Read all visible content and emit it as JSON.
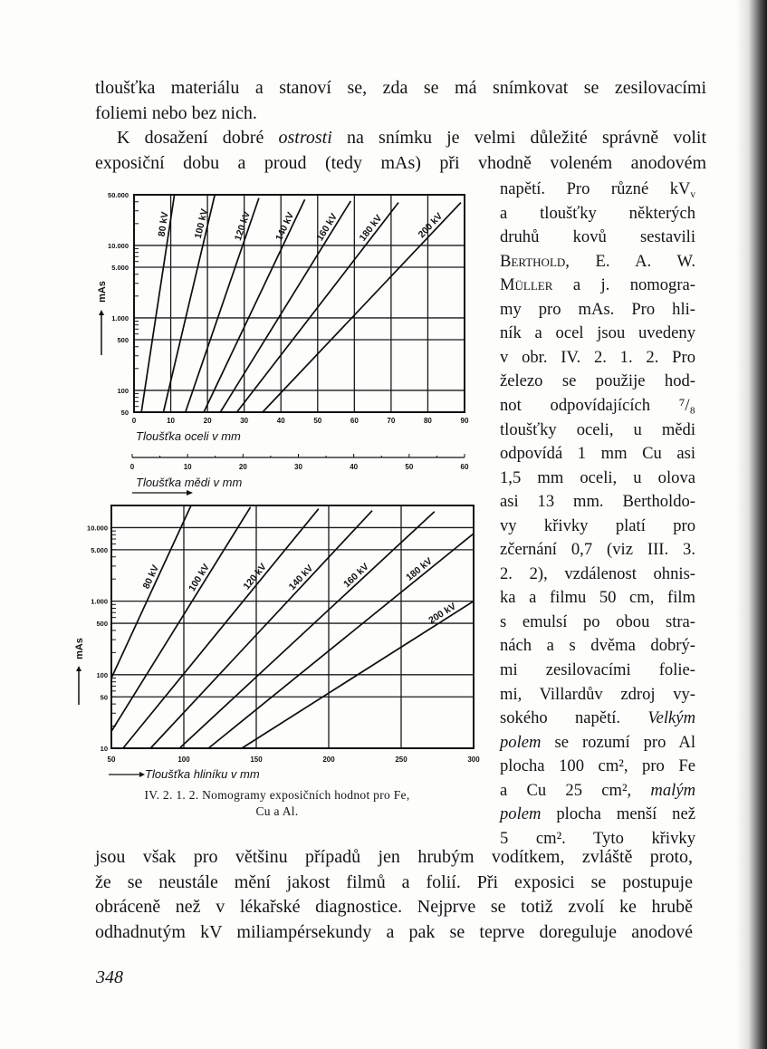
{
  "page": {
    "top_lines": [
      [
        {
          "t": "tloušťka materiálu a stanoví se, zda se má snímkovat se zesilovacími"
        }
      ],
      [
        {
          "t": "foliemi nebo bez nich."
        }
      ],
      [
        {
          "t": "K dosažení dobré "
        },
        {
          "t": "ostrosti",
          "style": "italic"
        },
        {
          "t": " na snímku je velmi důležité správně volit"
        }
      ],
      [
        {
          "t": "exposiční dobu a proud (tedy mAs) při vhodně voleném anodovém"
        }
      ]
    ],
    "column_lines": [
      [
        {
          "t": "napětí. Pro různé kV"
        },
        {
          "t": "v",
          "style": "sub"
        }
      ],
      [
        {
          "t": "a tloušťky některých"
        }
      ],
      [
        {
          "t": "druhů kovů sestavili"
        }
      ],
      [
        {
          "t": "Berthold",
          "style": "smallcaps"
        },
        {
          "t": ", E. A. W."
        }
      ],
      [
        {
          "t": "Müller",
          "style": "smallcaps"
        },
        {
          "t": " a j. nomogra-"
        }
      ],
      [
        {
          "t": "my pro mAs. Pro hli-"
        }
      ],
      [
        {
          "t": "ník a ocel jsou uvedeny"
        }
      ],
      [
        {
          "t": "v obr. IV. 2. 1. 2. Pro"
        }
      ],
      [
        {
          "t": "železo se použije hod-"
        }
      ],
      [
        {
          "t": "not odpovídajících ⁷/₈"
        }
      ],
      [
        {
          "t": "tloušťky oceli, u mědi"
        }
      ],
      [
        {
          "t": "odpovídá 1 mm Cu asi"
        }
      ],
      [
        {
          "t": "1,5 mm oceli, u olova"
        }
      ],
      [
        {
          "t": "asi 13 mm. Bertholdo-"
        }
      ],
      [
        {
          "t": "vy křivky platí pro"
        }
      ],
      [
        {
          "t": "zčernání 0,7 (viz III. 3."
        }
      ],
      [
        {
          "t": "2. 2), vzdálenost ohnis-"
        }
      ],
      [
        {
          "t": "ka a filmu 50 cm, film"
        }
      ],
      [
        {
          "t": "s emulsí po obou stra-"
        }
      ],
      [
        {
          "t": "nách a s dvěma dobrý-"
        }
      ],
      [
        {
          "t": "mi zesilovacími folie-"
        }
      ],
      [
        {
          "t": "mi, Villardův zdroj vy-"
        }
      ],
      [
        {
          "t": "sokého napětí. "
        },
        {
          "t": "Velkým",
          "style": "italic"
        }
      ],
      [
        {
          "t": "polem",
          "style": "italic"
        },
        {
          "t": " se rozumí pro Al"
        }
      ],
      [
        {
          "t": "plocha 100 cm², pro Fe"
        }
      ],
      [
        {
          "t": "a Cu 25 cm², "
        },
        {
          "t": "malým",
          "style": "italic"
        }
      ],
      [
        {
          "t": "polem",
          "style": "italic"
        },
        {
          "t": " plocha menší než"
        }
      ],
      [
        {
          "t": "5 cm². Tyto křivky"
        }
      ]
    ],
    "bottom_lines": [
      [
        {
          "t": "jsou však pro většinu případů jen hrubým vodítkem, zvláště proto,"
        }
      ],
      [
        {
          "t": "že se neustále mění jakost filmů a folií. Při exposici se postupuje"
        }
      ],
      [
        {
          "t": "obráceně než v lékařské diagnostice. Nejprve se totiž zvolí ke hrubě"
        }
      ],
      [
        {
          "t": "odhadnutým kV miliampérsekundy a pak se teprve doreguluje anodové"
        }
      ]
    ],
    "caption_line1": "IV. 2. 1. 2. Nomogramy exposičních hodnot pro Fe,",
    "caption_line2": "Cu a Al.",
    "page_number": "348"
  },
  "chart_data": [
    {
      "type": "line",
      "xlabel": "Tloušťka oceli v mm",
      "ylabel": "mAs",
      "yscale": "log",
      "xlim": [
        0,
        90
      ],
      "ylim": [
        50,
        50000
      ],
      "grid": true,
      "xticks": [
        0,
        10,
        20,
        30,
        40,
        50,
        60,
        70,
        80,
        90
      ],
      "xtick_labels": [
        "0",
        "10",
        "20",
        "30",
        "40",
        "50",
        "60",
        "70",
        "80",
        "90"
      ],
      "yticks": [
        50000,
        10000,
        5000,
        1000,
        500,
        100,
        50
      ],
      "ytick_labels": [
        "50.000",
        "10.000",
        "5.000",
        "1.000",
        "500",
        "100",
        "50"
      ],
      "secondary_xaxis": {
        "label": "Tloušťka mědi v mm",
        "lim": [
          0,
          60
        ],
        "ticks": [
          0,
          10,
          20,
          30,
          40,
          50,
          60
        ],
        "tick_labels": [
          "0",
          "10",
          "20",
          "30",
          "40",
          "50",
          "60"
        ]
      },
      "series": [
        {
          "name": "80 kV",
          "points": [
            [
              2,
              50
            ],
            [
              11,
              50000
            ]
          ]
        },
        {
          "name": "100 kV",
          "points": [
            [
              8,
              50
            ],
            [
              22,
              50000
            ]
          ]
        },
        {
          "name": "120 kV",
          "points": [
            [
              14,
              50
            ],
            [
              34,
              45000
            ]
          ]
        },
        {
          "name": "140 kV",
          "points": [
            [
              19,
              50
            ],
            [
              46.5,
              43000
            ]
          ]
        },
        {
          "name": "160 kV",
          "points": [
            [
              23.5,
              50
            ],
            [
              59,
              41000
            ]
          ]
        },
        {
          "name": "180 kV",
          "points": [
            [
              28,
              50
            ],
            [
              72,
              39000
            ]
          ]
        },
        {
          "name": "200 kV",
          "points": [
            [
              35,
              50
            ],
            [
              89,
              39000
            ]
          ]
        }
      ]
    },
    {
      "type": "line",
      "xlabel": "Tloušťka hliníku v mm",
      "ylabel": "mAs",
      "yscale": "log",
      "xlim": [
        50,
        300
      ],
      "ylim": [
        10,
        20000
      ],
      "grid": true,
      "xticks": [
        50,
        100,
        150,
        200,
        250,
        300
      ],
      "xtick_labels": [
        "50",
        "100",
        "150",
        "200",
        "250",
        "300"
      ],
      "yticks": [
        10000,
        5000,
        1000,
        500,
        100,
        50,
        10
      ],
      "ytick_labels": [
        "10.000",
        "5.000",
        "1.000",
        "500",
        "100",
        "50",
        "10"
      ],
      "series": [
        {
          "name": "80 kV",
          "points": [
            [
              50,
              90
            ],
            [
              105,
              20000
            ]
          ]
        },
        {
          "name": "100 kV",
          "points": [
            [
              50,
              17
            ],
            [
              146,
              19000
            ]
          ]
        },
        {
          "name": "120 kV",
          "points": [
            [
              58,
              10
            ],
            [
              193,
              18000
            ]
          ]
        },
        {
          "name": "140 kV",
          "points": [
            [
              77,
              10
            ],
            [
              230,
              17000
            ]
          ]
        },
        {
          "name": "160 kV",
          "points": [
            [
              97,
              10
            ],
            [
              273,
              16500
            ]
          ]
        },
        {
          "name": "180 kV",
          "points": [
            [
              117,
              10
            ],
            [
              300,
              8300
            ]
          ]
        },
        {
          "name": "200 kV",
          "points": [
            [
              140,
              10
            ],
            [
              300,
              1000
            ]
          ]
        }
      ]
    }
  ]
}
